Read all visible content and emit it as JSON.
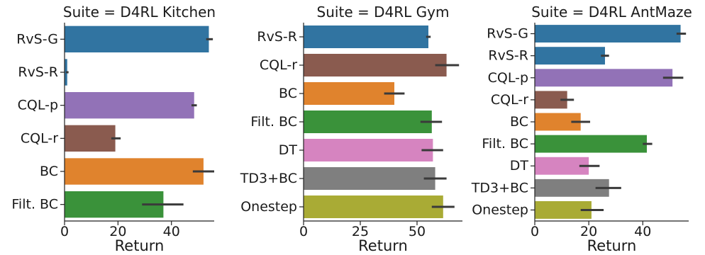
{
  "colors": {
    "RvS-G": "#3174a1",
    "RvS-R": "#3174a1",
    "CQL-p": "#9272b7",
    "CQL-r": "#8a5b4f",
    "BC": "#e0832d",
    "Filt. BC": "#3a923a",
    "DT": "#d684c0",
    "TD3+BC": "#7f7f7f",
    "Onestep": "#a9ab35",
    "errorbar": "#3a3a3a",
    "axis": "#222222"
  },
  "chart_data": [
    {
      "type": "bar",
      "orientation": "horizontal",
      "title": "Suite = D4RL Kitchen",
      "xlabel": "Return",
      "ylabel": "",
      "xlim": [
        0,
        56
      ],
      "xticks": [
        0,
        20,
        40
      ],
      "grid": false,
      "categories": [
        "RvS-G",
        "RvS-R",
        "CQL-p",
        "CQL-r",
        "BC",
        "Filt. BC"
      ],
      "values": [
        54.0,
        1.0,
        48.5,
        19.0,
        52.0,
        37.0
      ],
      "error_low": [
        53.0,
        0.5,
        47.5,
        17.5,
        48.0,
        29.0
      ],
      "error_high": [
        55.5,
        1.5,
        49.5,
        21.0,
        56.0,
        44.5
      ]
    },
    {
      "type": "bar",
      "orientation": "horizontal",
      "title": "Suite = D4RL Gym",
      "xlabel": "Return",
      "ylabel": "",
      "xlim": [
        0,
        70
      ],
      "xticks": [
        0,
        25,
        50
      ],
      "grid": false,
      "categories": [
        "RvS-R",
        "CQL-r",
        "BC",
        "Filt. BC",
        "DT",
        "TD3+BC",
        "Onestep"
      ],
      "values": [
        55.0,
        63.0,
        40.0,
        56.5,
        57.0,
        58.0,
        61.5
      ],
      "error_low": [
        54.0,
        58.0,
        35.5,
        51.5,
        52.0,
        53.0,
        56.5
      ],
      "error_high": [
        56.0,
        68.5,
        44.5,
        61.0,
        61.5,
        63.0,
        66.5
      ]
    },
    {
      "type": "bar",
      "orientation": "horizontal",
      "title": "Suite = D4RL AntMaze",
      "xlabel": "Return",
      "ylabel": "",
      "xlim": [
        0,
        57
      ],
      "xticks": [
        0,
        20,
        40
      ],
      "grid": false,
      "categories": [
        "RvS-G",
        "RvS-R",
        "CQL-p",
        "CQL-r",
        "BC",
        "Filt. BC",
        "DT",
        "TD3+BC",
        "Onestep"
      ],
      "values": [
        54.0,
        26.0,
        51.0,
        12.0,
        17.0,
        41.5,
        20.0,
        27.5,
        21.0
      ],
      "error_low": [
        52.5,
        24.5,
        47.5,
        9.5,
        13.5,
        40.0,
        16.5,
        22.5,
        17.0
      ],
      "error_high": [
        56.0,
        27.5,
        55.0,
        14.5,
        20.5,
        43.5,
        24.0,
        32.0,
        25.5
      ]
    }
  ]
}
